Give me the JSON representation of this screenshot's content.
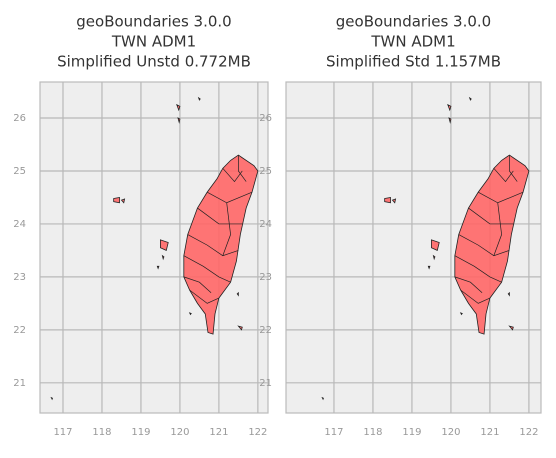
{
  "chart_data": [
    {
      "type": "map",
      "title_lines": [
        "geoBoundaries 3.0.0",
        "TWN ADM1",
        "Simplified Unstd 0.772MB"
      ],
      "xlim": [
        116.41,
        122.26
      ],
      "ylim": [
        20.43,
        26.68
      ],
      "xticks": [
        117,
        118,
        119,
        120,
        121,
        122
      ],
      "yticks": [
        21,
        22,
        23,
        24,
        25,
        26
      ],
      "grid": true,
      "color": "#ff6666"
    },
    {
      "type": "map",
      "title_lines": [
        "geoBoundaries 3.0.0",
        "TWN ADM1",
        "Simplified Std 1.157MB"
      ],
      "xlim": [
        115.77,
        122.31
      ],
      "ylim": [
        20.43,
        26.68
      ],
      "xticks": [
        117,
        118,
        119,
        120,
        121,
        122
      ],
      "yticks": [
        21,
        22,
        23,
        24,
        25,
        26
      ],
      "grid": true,
      "color": "#ff6666"
    }
  ]
}
